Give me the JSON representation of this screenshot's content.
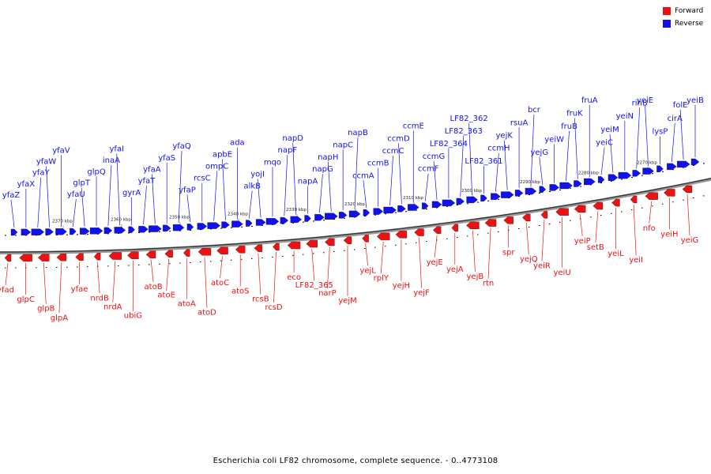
{
  "legend": [
    {
      "label": "Forward",
      "color": "#ee1111"
    },
    {
      "label": "Reverse",
      "color": "#1111ee"
    }
  ],
  "caption": "Escherichia coli LF82 chromosome, complete sequence. - 0..4773108",
  "ticks": [
    "2370 kbp",
    "2360 kbp",
    "2350 kbp",
    "2340 kbp",
    "2330 kbp",
    "2320 kbp",
    "2310 kbp",
    "2300 kbp",
    "2290 kbp",
    "2280 kbp",
    "2270 kbp"
  ],
  "reverse_genes": [
    "yfaZ",
    "yfaX",
    "yfaY",
    "yfaW",
    "yfaV",
    "yfaU",
    "glpT",
    "glpQ",
    "inaA",
    "yfaI",
    "gyrA",
    "yfaT",
    "yfaA",
    "yfaS",
    "yfaQ",
    "yfaP",
    "rcsC",
    "ompC",
    "apbE",
    "ada",
    "alkB",
    "yojI",
    "mqo",
    "napF",
    "napD",
    "napA",
    "napG",
    "napH",
    "napC",
    "napB",
    "ccmA",
    "ccmB",
    "ccmC",
    "ccmD",
    "ccmE",
    "ccmF",
    "ccmG",
    "LF82_364",
    "LF82_363",
    "LF82_362",
    "LF82_361",
    "ccmH",
    "yejK",
    "rsuA",
    "bcr",
    "yejG",
    "yeiW",
    "fruB",
    "fruK",
    "fruA",
    "yeiC",
    "yeiM",
    "yeiN",
    "rihB",
    "yeiE",
    "lysP",
    "cirA",
    "folE",
    "yeiB"
  ],
  "forward_genes": [
    "yfad",
    "glpC",
    "glpB",
    "glpA",
    "yfae",
    "nrdB",
    "nrdA",
    "ubiG",
    "atoB",
    "atoE",
    "atoA",
    "atoD",
    "atoC",
    "atoS",
    "rcsB",
    "rcsD",
    "eco",
    "LF82_365",
    "narP",
    "yejM",
    "yejL",
    "rplY",
    "yejH",
    "yejF",
    "yejE",
    "yejA",
    "yejB",
    "rtn",
    "spr",
    "yejQ",
    "yeiR",
    "yeiU",
    "yeiP",
    "setB",
    "yeiL",
    "yeiI",
    "nfo",
    "yeiH",
    "yeiG"
  ]
}
